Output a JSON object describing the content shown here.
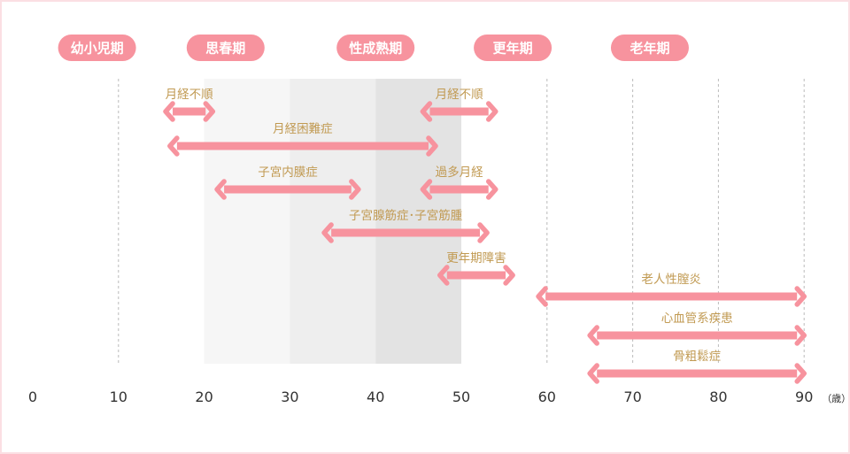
{
  "chart_data": {
    "type": "range-bar",
    "x_ticks": [
      0,
      10,
      20,
      30,
      40,
      50,
      60,
      70,
      80,
      90
    ],
    "x_unit": "（歳）",
    "life_stages": [
      {
        "label": "幼小児期",
        "center": 7.5
      },
      {
        "label": "思春期",
        "center": 22.5
      },
      {
        "label": "性成熟期",
        "center": 40
      },
      {
        "label": "更年期",
        "center": 56
      },
      {
        "label": "老年期",
        "center": 72
      }
    ],
    "shaded_bands": [
      {
        "from": 20,
        "to": 30,
        "color": "#f6f6f6"
      },
      {
        "from": 30,
        "to": 40,
        "color": "#eeeeee"
      },
      {
        "from": 40,
        "to": 50,
        "color": "#e3e3e3"
      }
    ],
    "dashed_gridlines": [
      10,
      60,
      70,
      80,
      90
    ],
    "bars": [
      {
        "label": "月経不順",
        "from": 15.5,
        "to": 21
      },
      {
        "label": "月経不順",
        "from": 45.5,
        "to": 54
      },
      {
        "label": "月経困難症",
        "from": 16,
        "to": 47
      },
      {
        "label": "子宮内膜症",
        "from": 21.5,
        "to": 38
      },
      {
        "label": "過多月経",
        "from": 45.5,
        "to": 54
      },
      {
        "label": "子宮腺筋症･子宮筋腫",
        "from": 34,
        "to": 53
      },
      {
        "label": "更年期障害",
        "from": 47.5,
        "to": 56
      },
      {
        "label": "老人性膣炎",
        "from": 59,
        "to": 90
      },
      {
        "label": "心血管系疾患",
        "from": 65,
        "to": 90
      },
      {
        "label": "骨粗鬆症",
        "from": 65,
        "to": 90
      }
    ],
    "colors": {
      "bar": "#f7939e",
      "stage_pill": "#f7939e",
      "bar_label": "#c19a52",
      "gridline": "#bbbbbb"
    }
  }
}
